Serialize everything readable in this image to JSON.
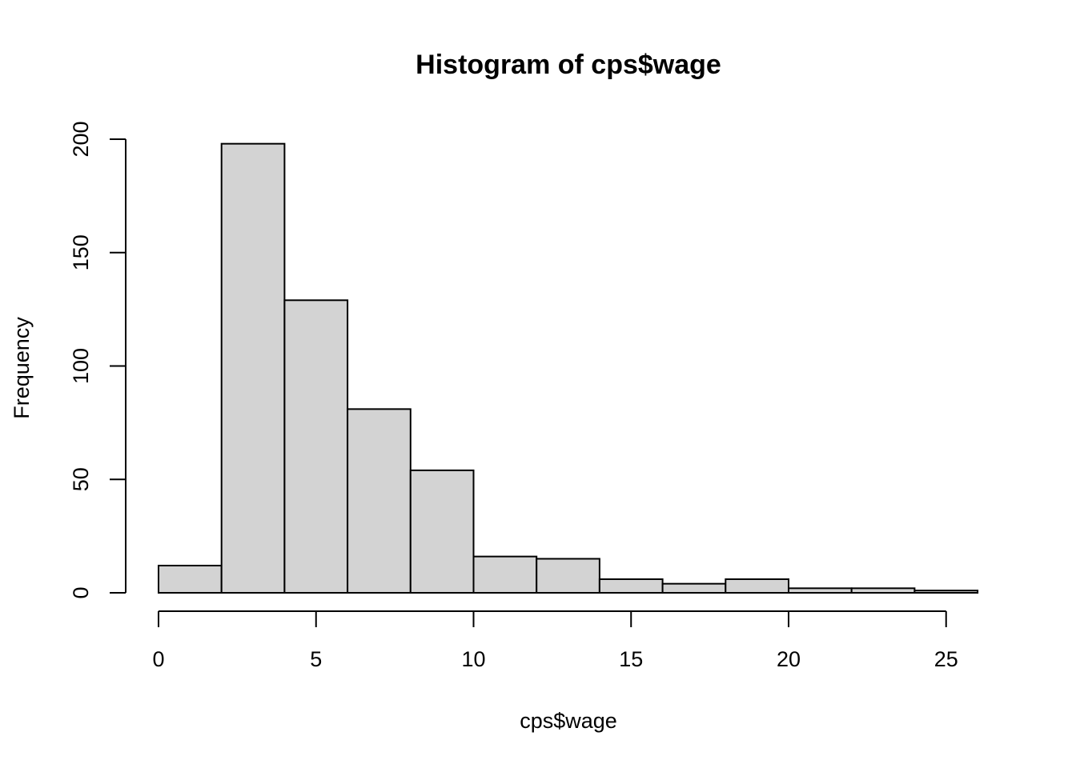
{
  "chart_data": {
    "type": "bar",
    "title": "Histogram of cps$wage",
    "xlabel": "cps$wage",
    "ylabel": "Frequency",
    "bins": [
      {
        "x0": 0,
        "x1": 2,
        "count": 12
      },
      {
        "x0": 2,
        "x1": 4,
        "count": 198
      },
      {
        "x0": 4,
        "x1": 6,
        "count": 129
      },
      {
        "x0": 6,
        "x1": 8,
        "count": 81
      },
      {
        "x0": 8,
        "x1": 10,
        "count": 54
      },
      {
        "x0": 10,
        "x1": 12,
        "count": 16
      },
      {
        "x0": 12,
        "x1": 14,
        "count": 15
      },
      {
        "x0": 14,
        "x1": 16,
        "count": 6
      },
      {
        "x0": 16,
        "x1": 18,
        "count": 4
      },
      {
        "x0": 18,
        "x1": 20,
        "count": 6
      },
      {
        "x0": 20,
        "x1": 22,
        "count": 2
      },
      {
        "x0": 22,
        "x1": 24,
        "count": 2
      },
      {
        "x0": 24,
        "x1": 26,
        "count": 1
      }
    ],
    "xticks": [
      0,
      5,
      10,
      15,
      20,
      25
    ],
    "yticks": [
      0,
      50,
      100,
      150,
      200
    ],
    "xlim": [
      0,
      25
    ],
    "ylim": [
      0,
      200
    ],
    "grid": false,
    "bar_fill": "#d3d3d3",
    "bar_stroke": "#000000"
  }
}
